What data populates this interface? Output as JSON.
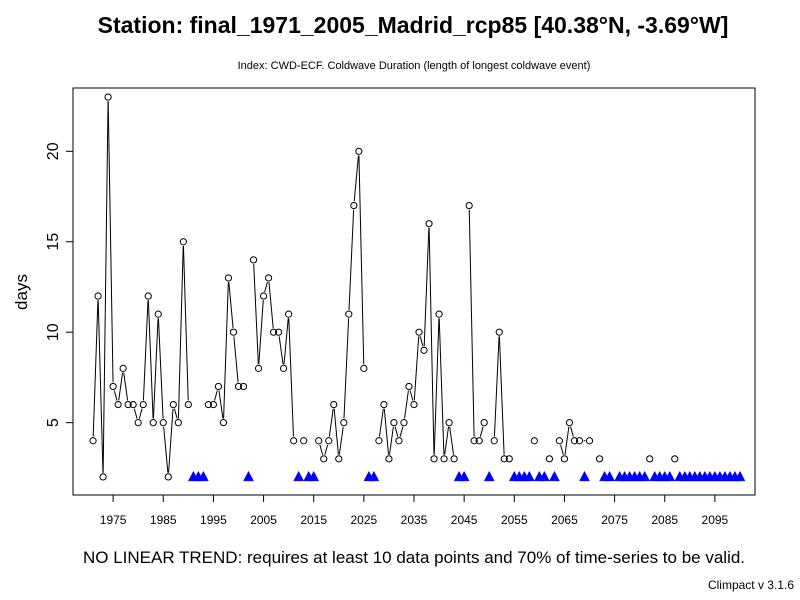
{
  "title": "Station: final_1971_2005_Madrid_rcp85 [40.38°N, -3.69°W]",
  "subtitle": "Index: CWD-ECF. Coldwave Duration (length of longest coldwave event)",
  "footnote": "NO LINEAR TREND: requires at least 10 data points and 70% of time-series to be valid.",
  "version": "Climpact v 3.1.6",
  "chart_data": {
    "type": "line",
    "title": "Station: final_1971_2005_Madrid_rcp85 [40.38°N, -3.69°W]",
    "subtitle": "Index: CWD-ECF. Coldwave Duration (length of longest coldwave event)",
    "xlabel": "",
    "ylabel": "days",
    "xlim": [
      1967,
      2103
    ],
    "ylim": [
      1,
      23.5
    ],
    "x_ticks": [
      1975,
      1985,
      1995,
      2005,
      2015,
      2025,
      2035,
      2045,
      2055,
      2065,
      2075,
      2085,
      2095
    ],
    "y_ticks": [
      5,
      10,
      15,
      20
    ],
    "grid": false,
    "legend": "none",
    "line_color": "#000000",
    "missing_marker_color": "#0000ff",
    "missing_marker_value": 2,
    "series": [
      {
        "x": [
          1971,
          1972,
          1973,
          1974,
          1975,
          1976,
          1977,
          1978,
          1979,
          1980,
          1981,
          1982,
          1983,
          1984,
          1985,
          1986,
          1987,
          1988,
          1989,
          1990,
          1994,
          1995,
          1996,
          1997,
          1998,
          1999,
          2000,
          2001,
          2003,
          2004,
          2005,
          2006,
          2007,
          2008,
          2009,
          2010,
          2011,
          2013,
          2016,
          2017,
          2018,
          2019,
          2020,
          2021,
          2022,
          2023,
          2024,
          2025,
          2028,
          2029,
          2030,
          2031,
          2032,
          2033,
          2034,
          2035,
          2036,
          2037,
          2038,
          2039,
          2040,
          2041,
          2042,
          2043,
          2046,
          2047,
          2048,
          2049,
          2051,
          2052,
          2053,
          2054,
          2059,
          2062,
          2064,
          2065,
          2066,
          2067,
          2068,
          2070,
          2072,
          2082,
          2087
        ],
        "values": [
          4,
          12,
          2,
          23,
          7,
          6,
          8,
          6,
          6,
          5,
          6,
          12,
          5,
          11,
          5,
          2,
          6,
          5,
          15,
          6,
          6,
          6,
          7,
          5,
          13,
          10,
          7,
          7,
          14,
          8,
          12,
          13,
          10,
          10,
          8,
          11,
          4,
          4,
          4,
          3,
          4,
          6,
          3,
          5,
          11,
          17,
          20,
          8,
          4,
          6,
          3,
          5,
          4,
          5,
          7,
          6,
          10,
          9,
          16,
          3,
          11,
          3,
          5,
          3,
          17,
          4,
          4,
          5,
          4,
          10,
          3,
          3,
          4,
          3,
          4,
          3,
          5,
          4,
          4,
          4,
          3,
          3,
          3
        ],
        "segments_breaks_after": [
          1990,
          2001,
          2011,
          2013,
          2025,
          2043,
          2049,
          2054,
          2059,
          2062,
          2070,
          2072,
          2082
        ]
      }
    ],
    "missing_years": [
      1991,
      1992,
      1993,
      2002,
      2012,
      2014,
      2015,
      2026,
      2027,
      2044,
      2045,
      2050,
      2055,
      2056,
      2057,
      2058,
      2060,
      2061,
      2063,
      2069,
      2073,
      2074,
      2076,
      2077,
      2078,
      2079,
      2080,
      2081,
      2083,
      2084,
      2085,
      2086,
      2088,
      2089,
      2090,
      2091,
      2092,
      2093,
      2094,
      2095,
      2096,
      2097,
      2098,
      2099,
      2100
    ]
  }
}
